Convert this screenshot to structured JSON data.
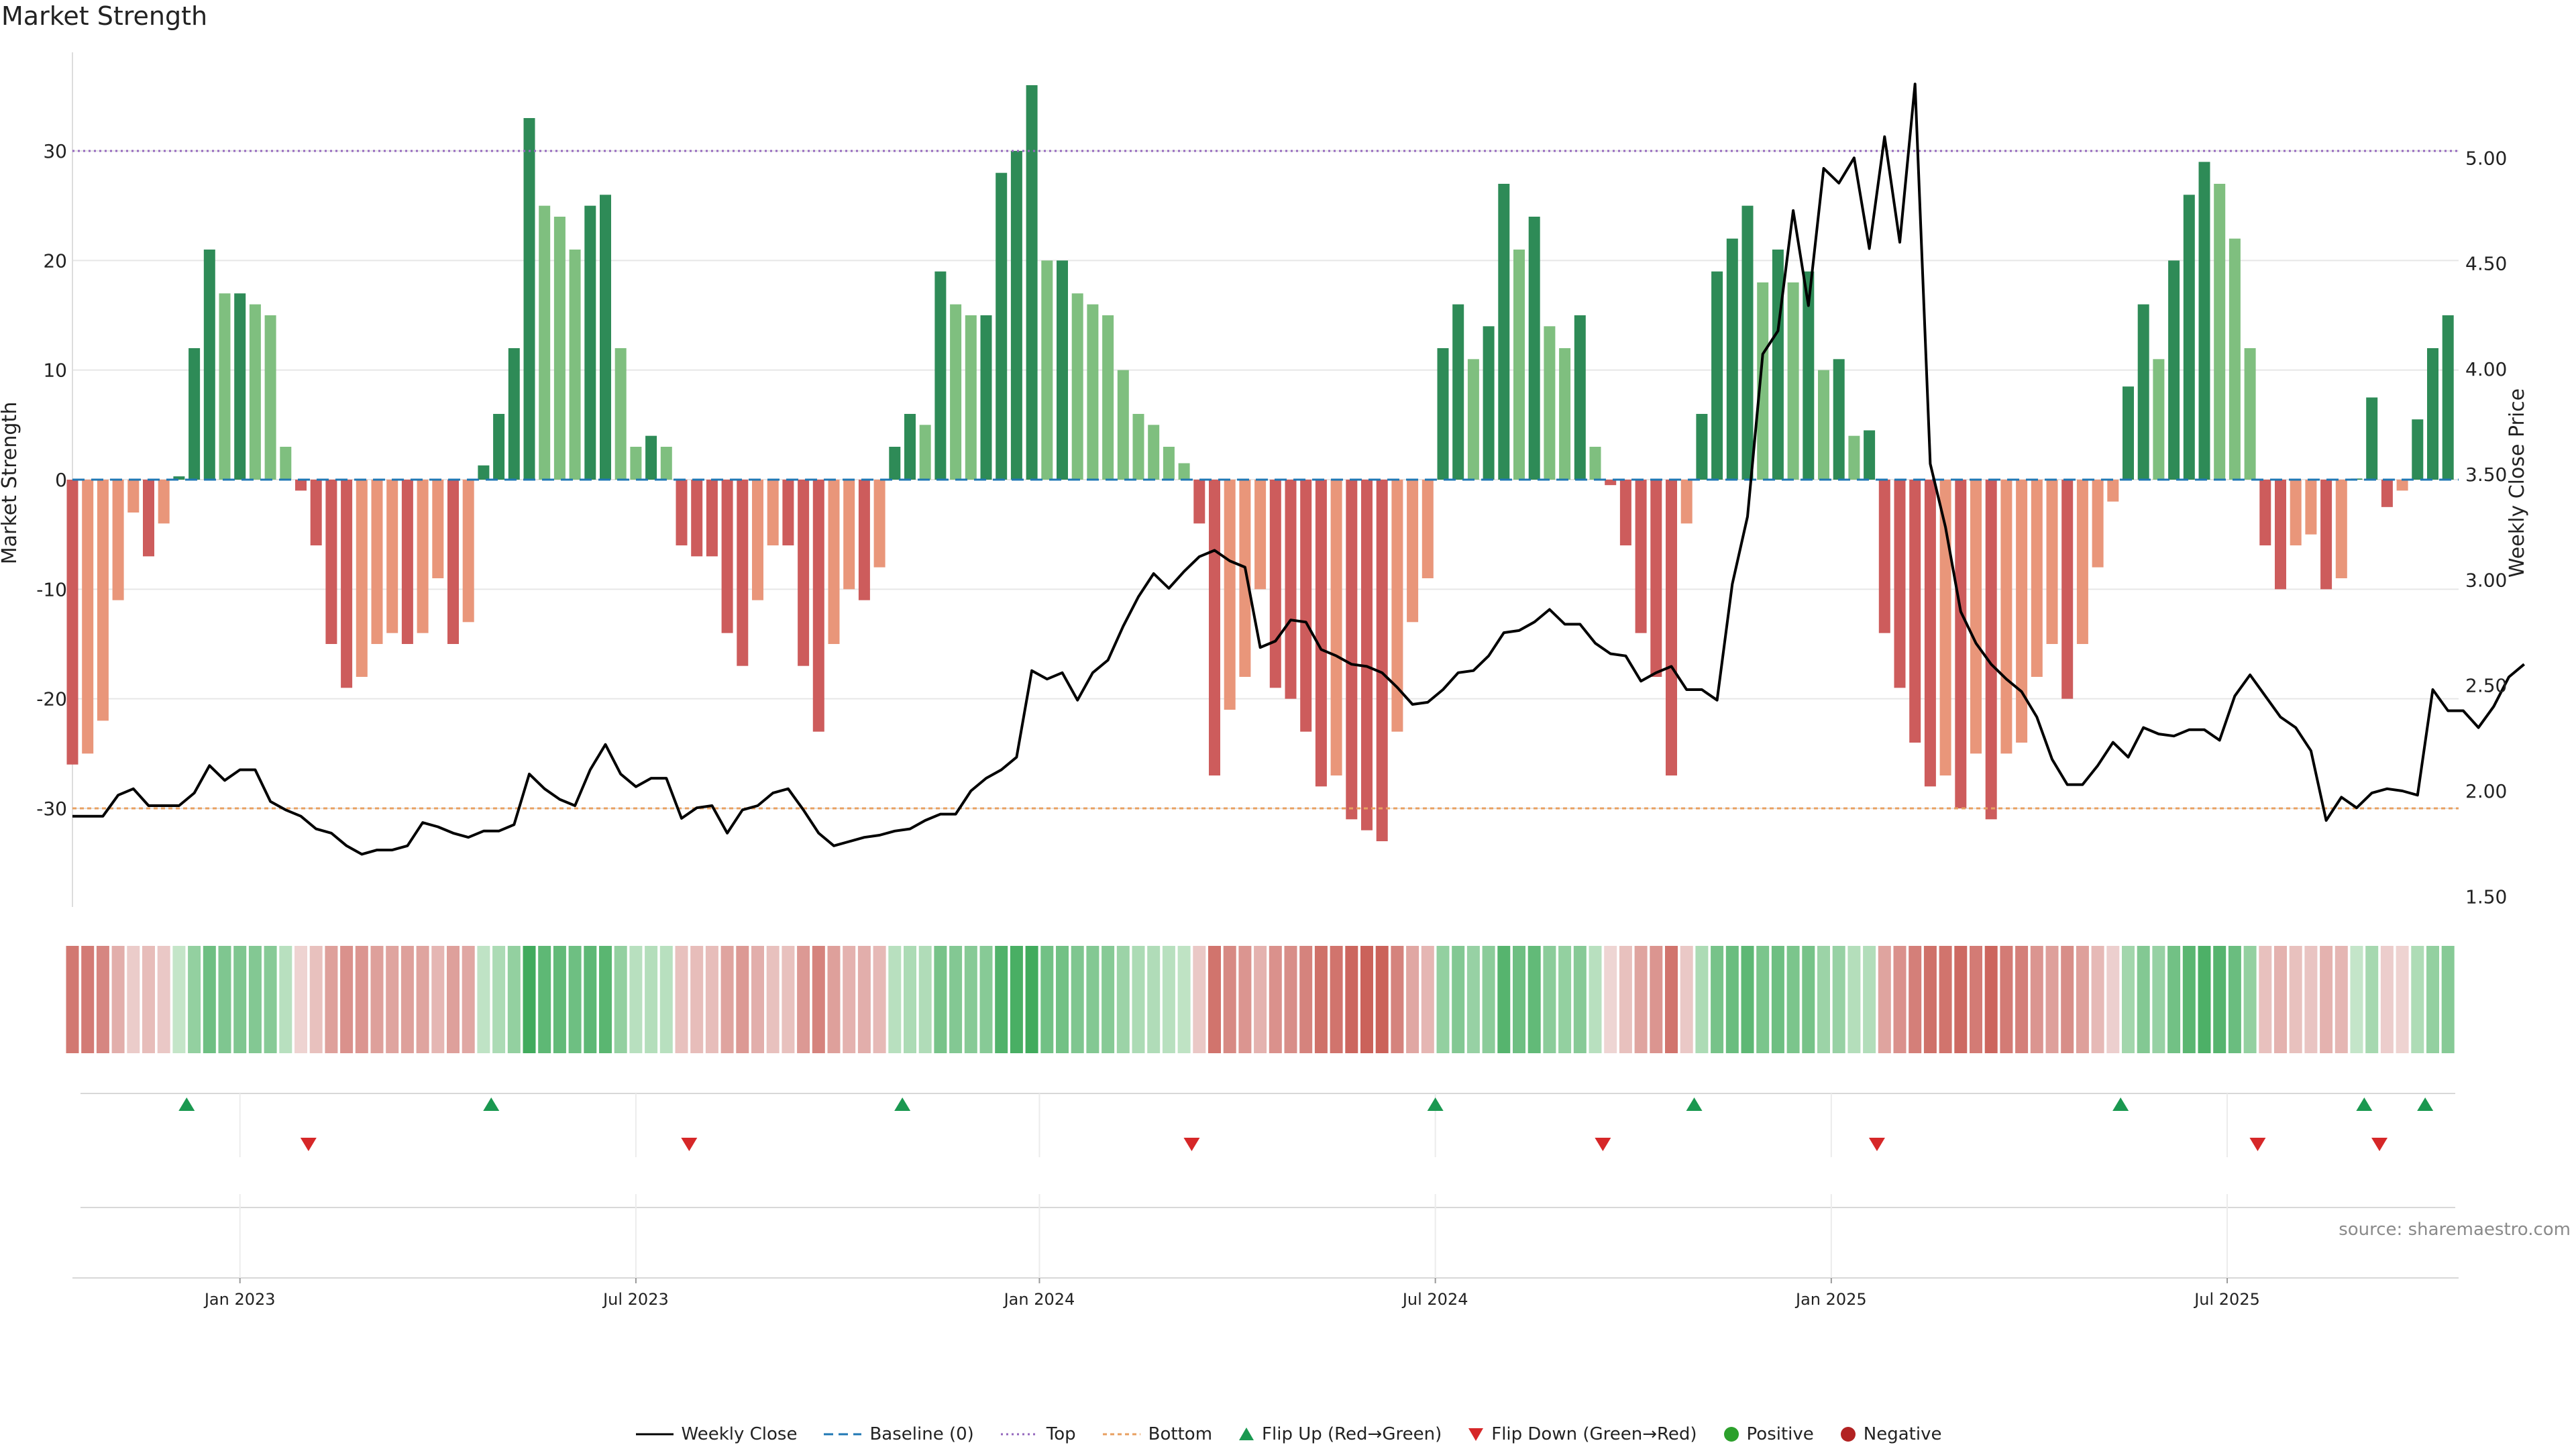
{
  "title": "Market Strength",
  "source": "source: sharemaestro.com",
  "colors": {
    "strong_green": "#2e8b57",
    "light_green": "#7fbf7f",
    "strong_red": "#cd5c5c",
    "light_red": "#e9967a",
    "top_line": "#9467bd",
    "bottom_line": "#e8a060",
    "baseline": "#1f77b4",
    "flip_up": "#1a9850",
    "flip_down": "#d62728",
    "positive": "#2ca02c",
    "negative": "#b22222"
  },
  "legend": [
    {
      "label": "Weekly Close",
      "kind": "line-solid",
      "color": "#000000"
    },
    {
      "label": "Baseline (0)",
      "kind": "line-dashed",
      "color": "#1f77b4"
    },
    {
      "label": "Top",
      "kind": "line-dotted",
      "color": "#9467bd"
    },
    {
      "label": "Bottom",
      "kind": "line-dashdot",
      "color": "#e8a060"
    },
    {
      "label": "Flip Up (Red→Green)",
      "kind": "tri-up",
      "color": "#1a9850"
    },
    {
      "label": "Flip Down (Green→Red)",
      "kind": "tri-down",
      "color": "#d62728"
    },
    {
      "label": "Positive",
      "kind": "dot",
      "color": "#2ca02c"
    },
    {
      "label": "Negative",
      "kind": "dot",
      "color": "#b22222"
    }
  ],
  "chart_data": {
    "type": "bar",
    "ylabel": "Market Strength",
    "y2label": "Weekly Close Price",
    "ylim": [
      -39,
      39
    ],
    "y2lim": [
      1.45,
      5.5
    ],
    "yticks": [
      -30,
      -20,
      -10,
      0,
      10,
      20,
      30
    ],
    "y2ticks": [
      "1.50",
      "2.00",
      "2.50",
      "3.00",
      "3.50",
      "4.00",
      "4.50",
      "5.00"
    ],
    "top_level": 30,
    "bottom_level": -30,
    "x_labels": [
      {
        "label": "Jan 2023",
        "week": 11
      },
      {
        "label": "Jul 2023",
        "week": 37
      },
      {
        "label": "Jan 2024",
        "week": 63.5
      },
      {
        "label": "Jul 2024",
        "week": 89.5
      },
      {
        "label": "Jan 2025",
        "week": 115.5
      },
      {
        "label": "Jul 2025",
        "week": 141.5
      }
    ],
    "strength": [
      -26,
      -25,
      -22,
      -11,
      -3,
      -7,
      -4,
      0.3,
      12,
      21,
      17,
      17,
      16,
      15,
      3,
      -1,
      -6,
      -15,
      -19,
      -18,
      -15,
      -14,
      -15,
      -14,
      -9,
      -15,
      -13,
      1.3,
      6,
      12,
      33,
      25,
      24,
      21,
      25,
      26,
      12,
      3,
      4,
      3,
      -6,
      -7,
      -7,
      -14,
      -17,
      -11,
      -6,
      -6,
      -17,
      -23,
      -15,
      -10,
      -11,
      -8,
      3,
      6,
      5,
      19,
      16,
      15,
      15,
      28,
      30,
      36,
      20,
      20,
      17,
      16,
      15,
      10,
      6,
      5,
      3,
      1.5,
      -4,
      -27,
      -21,
      -18,
      -10,
      -19,
      -20,
      -23,
      -28,
      -27,
      -31,
      -32,
      -33,
      -23,
      -13,
      -9,
      12,
      16,
      11,
      14,
      27,
      21,
      24,
      14,
      12,
      15,
      3,
      -0.5,
      -6,
      -14,
      -18,
      -27,
      -4,
      6,
      19,
      22,
      25,
      18,
      21,
      18,
      19,
      10,
      11,
      4,
      4.5,
      -14,
      -19,
      -24,
      -28,
      -27,
      -30,
      -25,
      -31,
      -25,
      -24,
      -18,
      -15,
      -20,
      -15,
      -8,
      -2,
      8.5,
      16,
      11,
      20,
      26,
      29,
      27,
      22,
      12,
      -6,
      -10,
      -6,
      -5,
      -10,
      -9,
      0.1,
      7.5,
      -2.5,
      -1,
      5.5,
      12,
      15
    ],
    "close": [
      1.88,
      1.88,
      1.88,
      1.98,
      2.01,
      1.93,
      1.93,
      1.93,
      1.99,
      2.12,
      2.05,
      2.1,
      2.1,
      1.95,
      1.91,
      1.88,
      1.82,
      1.8,
      1.74,
      1.7,
      1.72,
      1.72,
      1.74,
      1.85,
      1.83,
      1.8,
      1.78,
      1.81,
      1.81,
      1.84,
      2.08,
      2.01,
      1.96,
      1.93,
      2.1,
      2.22,
      2.08,
      2.02,
      2.06,
      2.06,
      1.87,
      1.92,
      1.93,
      1.8,
      1.91,
      1.93,
      1.99,
      2.01,
      1.91,
      1.8,
      1.74,
      1.76,
      1.78,
      1.79,
      1.81,
      1.82,
      1.86,
      1.89,
      1.89,
      2.0,
      2.06,
      2.1,
      2.16,
      2.57,
      2.53,
      2.56,
      2.43,
      2.56,
      2.62,
      2.78,
      2.92,
      3.03,
      2.96,
      3.04,
      3.11,
      3.14,
      3.09,
      3.06,
      2.68,
      2.71,
      2.81,
      2.8,
      2.67,
      2.64,
      2.6,
      2.59,
      2.56,
      2.49,
      2.41,
      2.42,
      2.48,
      2.56,
      2.57,
      2.64,
      2.75,
      2.76,
      2.8,
      2.86,
      2.79,
      2.79,
      2.7,
      2.65,
      2.64,
      2.52,
      2.56,
      2.59,
      2.48,
      2.48,
      2.43,
      2.98,
      3.3,
      4.07,
      4.18,
      4.75,
      4.3,
      4.95,
      4.88,
      5.0,
      4.57,
      5.1,
      4.6,
      5.35,
      3.55,
      3.25,
      2.85,
      2.7,
      2.6,
      2.53,
      2.47,
      2.35,
      2.15,
      2.03,
      2.03,
      2.12,
      2.23,
      2.16,
      2.3,
      2.27,
      2.26,
      2.29,
      2.29,
      2.24,
      2.45,
      2.55,
      2.45,
      2.35,
      2.3,
      2.19,
      1.86,
      1.97,
      1.92,
      1.99,
      2.01,
      2.0,
      1.98,
      2.48,
      2.38,
      2.38,
      2.3,
      2.4,
      2.54,
      2.6
    ],
    "flip_up_weeks": [
      7.5,
      27.5,
      54.5,
      89.5,
      106.5,
      134.5,
      150.5,
      154.5
    ],
    "flip_down_weeks": [
      15.5,
      40.5,
      73.5,
      100.5,
      118.5,
      143.5,
      151.5
    ]
  }
}
